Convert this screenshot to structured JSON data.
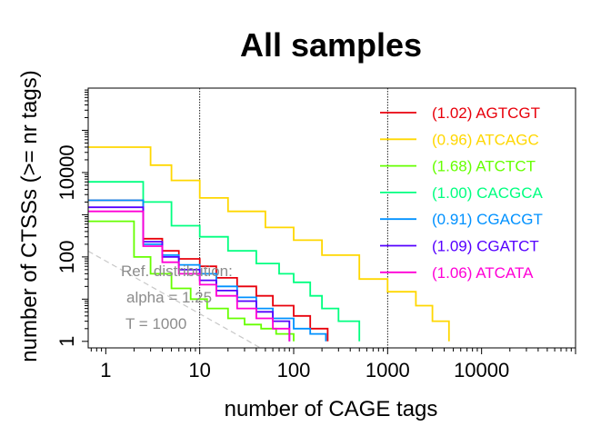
{
  "chart_data": {
    "type": "line",
    "title": "All samples",
    "xlabel": "number of CAGE tags",
    "ylabel": "number of CTSSs (>= nr tags)",
    "x_scale": "log",
    "y_scale": "log",
    "xlim": [
      0.65,
      100000
    ],
    "ylim": [
      0.7,
      1000000
    ],
    "x_ticks": [
      {
        "value": 1,
        "label": "1"
      },
      {
        "value": 10,
        "label": "10"
      },
      {
        "value": 100,
        "label": "100"
      },
      {
        "value": 1000,
        "label": "1000"
      },
      {
        "value": 10000,
        "label": "10000"
      }
    ],
    "y_ticks": [
      {
        "value": 1,
        "label": "1"
      },
      {
        "value": 100,
        "label": "100"
      },
      {
        "value": 10000,
        "label": "10000"
      }
    ],
    "vlines": [
      10,
      1000
    ],
    "legend_position": "top-right",
    "reference": {
      "lines": [
        "Ref. distribution:",
        "alpha = 1.25",
        "T = 1000"
      ],
      "color": "#c8c8c8",
      "alpha": 1.25,
      "T": 1000
    },
    "series": [
      {
        "name": "AGTCGT",
        "legend": "(1.02) AGTCGT",
        "color": "#e8000b",
        "x": [
          0.65,
          1.5,
          2.5,
          4,
          6,
          10,
          15,
          25,
          40,
          60,
          100,
          150,
          230
        ],
        "y": [
          2200,
          2200,
          270,
          140,
          90,
          60,
          32,
          20,
          12,
          7,
          4,
          2,
          1
        ]
      },
      {
        "name": "ATCAGC",
        "legend": "(0.96) ATCAGC",
        "color": "#ffd700",
        "x": [
          0.65,
          1.5,
          3,
          5,
          10,
          20,
          50,
          100,
          200,
          500,
          1000,
          2000,
          3000,
          4500
        ],
        "y": [
          40000,
          40000,
          15000,
          6500,
          2500,
          1200,
          500,
          250,
          110,
          30,
          15,
          7,
          3,
          1
        ]
      },
      {
        "name": "ATCTCT",
        "legend": "(1.68) ATCTCT",
        "color": "#66ff00",
        "x": [
          0.65,
          1.5,
          2,
          3,
          5,
          8,
          12,
          20,
          30,
          45,
          65,
          100
        ],
        "y": [
          700,
          700,
          100,
          40,
          18,
          10,
          6,
          3.5,
          2.5,
          2,
          1.5,
          1
        ]
      },
      {
        "name": "CACGCA",
        "legend": "(1.00) CACGCA",
        "color": "#00ff80",
        "x": [
          0.65,
          1.5,
          2.5,
          5,
          10,
          20,
          40,
          70,
          100,
          150,
          200,
          300,
          500
        ],
        "y": [
          6000,
          6000,
          2000,
          550,
          300,
          140,
          70,
          40,
          25,
          12,
          6,
          3,
          1
        ]
      },
      {
        "name": "CGACGT",
        "legend": "(0.91) CGACGT",
        "color": "#0091ff",
        "x": [
          0.65,
          1.5,
          2.5,
          4,
          6,
          10,
          15,
          25,
          40,
          60,
          100,
          150,
          220
        ],
        "y": [
          2200,
          2200,
          200,
          110,
          65,
          40,
          20,
          11,
          6,
          3.5,
          2,
          1.5,
          1
        ]
      },
      {
        "name": "CGATCT",
        "legend": "(1.09) CGATCT",
        "color": "#5500ff",
        "x": [
          0.65,
          1.5,
          2.5,
          4,
          6,
          10,
          15,
          25,
          40,
          60,
          90
        ],
        "y": [
          1500,
          1500,
          230,
          100,
          50,
          28,
          16,
          9,
          5,
          3,
          1
        ]
      },
      {
        "name": "ATCATA",
        "legend": "(1.06) ATCATA",
        "color": "#ff00d6",
        "x": [
          0.65,
          1.5,
          2.5,
          4,
          6,
          10,
          15,
          25,
          40,
          60,
          90
        ],
        "y": [
          1200,
          1200,
          180,
          75,
          40,
          22,
          12,
          6,
          3.5,
          2,
          1
        ]
      }
    ]
  }
}
